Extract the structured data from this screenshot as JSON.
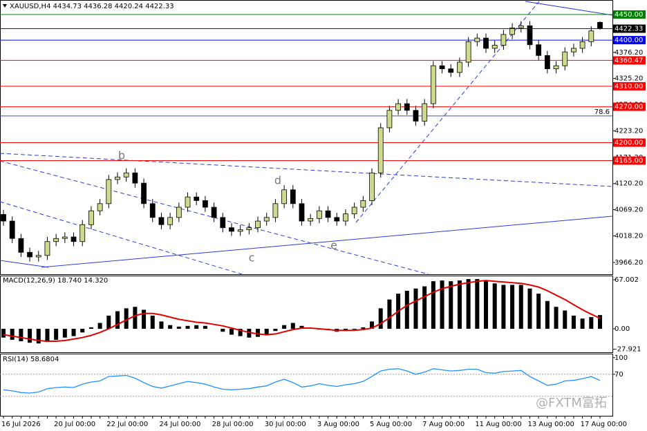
{
  "chart_data": [
    {
      "type": "candlestick",
      "title": "XAUUSD,H4  4434.73 4436.28 4420.24 4422.33",
      "categories": [
        "16 Jul 2026",
        null,
        null,
        null,
        null,
        null,
        "20 Jul 00:00",
        null,
        null,
        null,
        null,
        null,
        "22 Jul 00:00",
        null,
        null,
        null,
        null,
        null,
        "24 Jul 00:00",
        null,
        null,
        null,
        null,
        null,
        "28 Jul 00:00",
        null,
        null,
        null,
        null,
        null,
        "30 Jul 00:00",
        null,
        null,
        null,
        null,
        null,
        "3 Aug 00:00",
        null,
        null,
        null,
        null,
        null,
        "5 Aug 00:00",
        null,
        null,
        null,
        null,
        null,
        "7 Aug 00:00",
        null,
        null,
        null,
        null,
        null,
        "11 Aug 00:00",
        null,
        null,
        null,
        null,
        null,
        "13 Aug 00:00",
        null,
        null,
        null,
        null,
        null,
        "17 Aug 00:00",
        null,
        null
      ],
      "open": [
        4060,
        4047,
        4013,
        3986,
        3977,
        3980,
        4007,
        4013,
        4016,
        4007,
        4040,
        4067,
        4081,
        4128,
        4133,
        4141,
        4121,
        4081,
        4054,
        4040,
        4054,
        4074,
        4094,
        4087,
        4074,
        4054,
        4034,
        4027,
        4030,
        4034,
        4047,
        4054,
        4081,
        4108,
        4081,
        4047,
        4052,
        4067,
        4054,
        4047,
        4061,
        4074,
        4087,
        4141,
        4229,
        4263,
        4276,
        4263,
        4242,
        4276,
        4350,
        4344,
        4337,
        4357,
        4397,
        4404,
        4384,
        4390,
        4411,
        4424,
        4428,
        4391,
        4370,
        4344,
        4350,
        4377,
        4384,
        4397,
        4434.73
      ],
      "high": [
        4069,
        4056,
        4022,
        3995,
        3989,
        4016,
        4022,
        4025,
        4025,
        4049,
        4076,
        4090,
        4137,
        4142,
        4150,
        4150,
        4130,
        4090,
        4063,
        4063,
        4083,
        4103,
        4103,
        4096,
        4083,
        4063,
        4043,
        4039,
        4043,
        4056,
        4063,
        4090,
        4117,
        4117,
        4090,
        4061,
        4076,
        4076,
        4063,
        4070,
        4083,
        4096,
        4150,
        4238,
        4272,
        4285,
        4285,
        4272,
        4285,
        4359,
        4359,
        4353,
        4366,
        4406,
        4413,
        4413,
        4399,
        4420,
        4433,
        4437,
        4437,
        4400,
        4379,
        4359,
        4386,
        4393,
        4406,
        4427,
        4436.28
      ],
      "low": [
        4038,
        4004,
        3977,
        3968,
        3968,
        3971,
        3998,
        4004,
        3998,
        3998,
        4031,
        4058,
        4072,
        4119,
        4124,
        4112,
        4072,
        4045,
        4031,
        4031,
        4045,
        4065,
        4078,
        4065,
        4045,
        4025,
        4018,
        4018,
        4021,
        4025,
        4038,
        4045,
        4072,
        4072,
        4038,
        4038,
        4043,
        4045,
        4038,
        4038,
        4052,
        4065,
        4078,
        4132,
        4220,
        4254,
        4254,
        4233,
        4233,
        4267,
        4335,
        4328,
        4328,
        4348,
        4388,
        4375,
        4375,
        4381,
        4402,
        4415,
        4382,
        4361,
        4335,
        4335,
        4341,
        4368,
        4375,
        4388,
        4420.24
      ],
      "close": [
        4047,
        4013,
        3986,
        3977,
        3980,
        4007,
        4013,
        4016,
        4007,
        4040,
        4067,
        4081,
        4128,
        4133,
        4141,
        4121,
        4081,
        4054,
        4040,
        4054,
        4074,
        4094,
        4087,
        4074,
        4054,
        4034,
        4027,
        4030,
        4034,
        4047,
        4054,
        4081,
        4108,
        4081,
        4047,
        4052,
        4067,
        4054,
        4047,
        4061,
        4074,
        4087,
        4141,
        4229,
        4263,
        4276,
        4263,
        4242,
        4276,
        4350,
        4344,
        4337,
        4357,
        4397,
        4404,
        4384,
        4390,
        4411,
        4424,
        4428,
        4391,
        4370,
        4344,
        4350,
        4377,
        4384,
        4397,
        4418,
        4422.33
      ],
      "up_color": "#cdd98c",
      "down_color": "#000000",
      "ylim": [
        3943.3,
        4478.3
      ],
      "yticks": [
        {
          "value": 4376.2,
          "label": "4376.20"
        },
        {
          "value": 4325.2,
          "label": "4325.20"
        },
        {
          "value": 4274.2,
          "label": "4274.20"
        },
        {
          "value": 4223.2,
          "label": "4223.20"
        },
        {
          "value": 4171.2,
          "label": "4171.20"
        },
        {
          "value": 4120.2,
          "label": "4120.20"
        },
        {
          "value": 4069.2,
          "label": "4069.20"
        },
        {
          "value": 4018.2,
          "label": "4018.20"
        },
        {
          "value": 3966.2,
          "label": "3966.20"
        }
      ],
      "levels": [
        {
          "value": 4450,
          "label": "4450.00",
          "color": "#008000"
        },
        {
          "value": 4400,
          "label": "4400.00",
          "color": "#0000ff"
        },
        {
          "value": 4360.47,
          "label": "4360.47",
          "color": "#ff0000"
        },
        {
          "value": 4310,
          "label": "4310.00",
          "color": "#ff0000"
        },
        {
          "value": 4270,
          "label": "4270.00",
          "color": "#ff0000"
        },
        {
          "value": 4200,
          "label": "4200.00",
          "color": "#ff0000"
        },
        {
          "value": 4165,
          "label": "4165.00",
          "color": "#ff0000"
        }
      ],
      "current_price": {
        "value": 4422.33,
        "label": "4422.33"
      },
      "fib": {
        "level": 78.6,
        "price": 4252
      },
      "annotations": [
        "b",
        "c",
        "d",
        "e"
      ]
    },
    {
      "type": "macd",
      "title": "MACD(12,26,9) 18.740 14.320",
      "series": [
        {
          "color": "#000000",
          "values": [
            -12,
            -15,
            -17,
            -19,
            -20,
            -18,
            -15,
            -12,
            -10,
            -5,
            2,
            8,
            18,
            24,
            28,
            30,
            26,
            18,
            10,
            5,
            3,
            4,
            5,
            4,
            0,
            -4,
            -8,
            -10,
            -12,
            -11,
            -9,
            -3,
            5,
            8,
            4,
            0,
            -1,
            -2,
            -4,
            -3,
            -1,
            2,
            10,
            28,
            40,
            48,
            52,
            55,
            58,
            65,
            66,
            65,
            66,
            68,
            68,
            66,
            62,
            60,
            60,
            60,
            55,
            48,
            38,
            30,
            25,
            18,
            14,
            16,
            18.74
          ]
        },
        {
          "color": "#e00000",
          "values": [
            -8,
            -10,
            -12,
            -14,
            -16,
            -17,
            -17,
            -16,
            -14,
            -12,
            -9,
            -5,
            0,
            6,
            12,
            18,
            21,
            21,
            19,
            16,
            13,
            11,
            9,
            8,
            6,
            4,
            1,
            -2,
            -5,
            -7,
            -8,
            -7,
            -4,
            -1,
            1,
            1,
            0,
            -1,
            -2,
            -2,
            -2,
            -1,
            1,
            7,
            15,
            24,
            32,
            38,
            44,
            50,
            55,
            58,
            61,
            63,
            65,
            66,
            65,
            64,
            63,
            62,
            60,
            57,
            52,
            46,
            40,
            33,
            26,
            20,
            14.32
          ]
        }
      ],
      "ylim": [
        -33,
        72.7
      ],
      "yticks": [
        67.002,
        {
          "value": 0,
          "label": "0.00"
        },
        -27.921
      ]
    },
    {
      "type": "line",
      "title": "RSI(14) 58.6804",
      "series": [
        {
          "color": "#1e90ff",
          "values": [
            42,
            40,
            37,
            36,
            38,
            44,
            46,
            47,
            46,
            52,
            56,
            58,
            66,
            67,
            68,
            63,
            55,
            48,
            45,
            49,
            53,
            57,
            55,
            52,
            47,
            43,
            42,
            43,
            44,
            47,
            49,
            56,
            61,
            55,
            47,
            49,
            53,
            50,
            48,
            51,
            53,
            57,
            66,
            76,
            79,
            80,
            76,
            70,
            74,
            80,
            78,
            76,
            77,
            79,
            79,
            73,
            72,
            75,
            76,
            77,
            66,
            58,
            50,
            52,
            58,
            59,
            62,
            66,
            58.68
          ]
        }
      ],
      "ylim": [
        -5,
        106
      ],
      "yticks": [
        100,
        70
      ],
      "levels": [
        70,
        30
      ]
    }
  ],
  "watermark": "@FXTM富拓"
}
